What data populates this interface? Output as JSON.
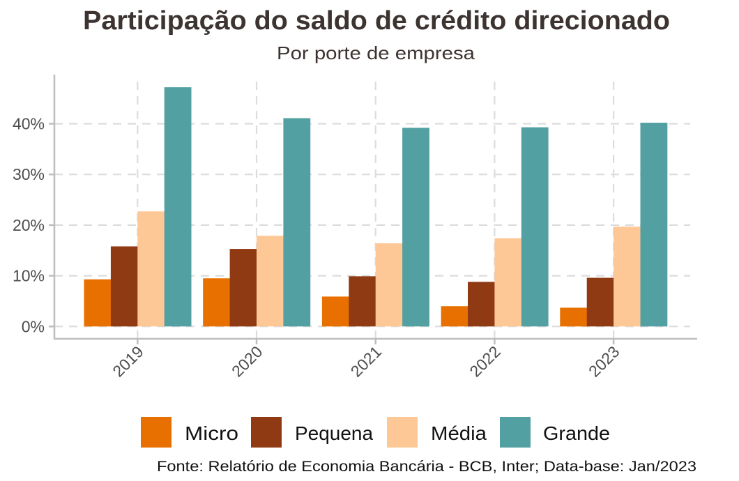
{
  "chart_data": {
    "type": "bar",
    "title": "Participação do saldo de crédito direcionado",
    "subtitle": "Por porte de empresa",
    "xlabel": "",
    "ylabel": "",
    "categories": [
      "2019",
      "2020",
      "2021",
      "2022",
      "2023"
    ],
    "series": [
      {
        "name": "Micro",
        "color": "#e87000",
        "values": [
          9.3,
          9.5,
          5.9,
          4.0,
          3.7
        ]
      },
      {
        "name": "Pequena",
        "color": "#8f3a13",
        "values": [
          15.8,
          15.3,
          9.9,
          8.8,
          9.6
        ]
      },
      {
        "name": "Média",
        "color": "#fdc895",
        "values": [
          22.7,
          17.9,
          16.4,
          17.4,
          19.7
        ]
      },
      {
        "name": "Grande",
        "color": "#52a0a2",
        "values": [
          47.2,
          41.1,
          39.2,
          39.3,
          40.2
        ]
      }
    ],
    "ylim": [
      0,
      50
    ],
    "yticks": [
      0,
      10,
      20,
      30,
      40
    ],
    "ytick_labels": [
      "0%",
      "10%",
      "20%",
      "30%",
      "40%"
    ],
    "grid": true,
    "legend_position": "bottom",
    "caption": "Fonte: Relatório de Economia Bancária - BCB, Inter; Data-base: Jan/2023"
  }
}
